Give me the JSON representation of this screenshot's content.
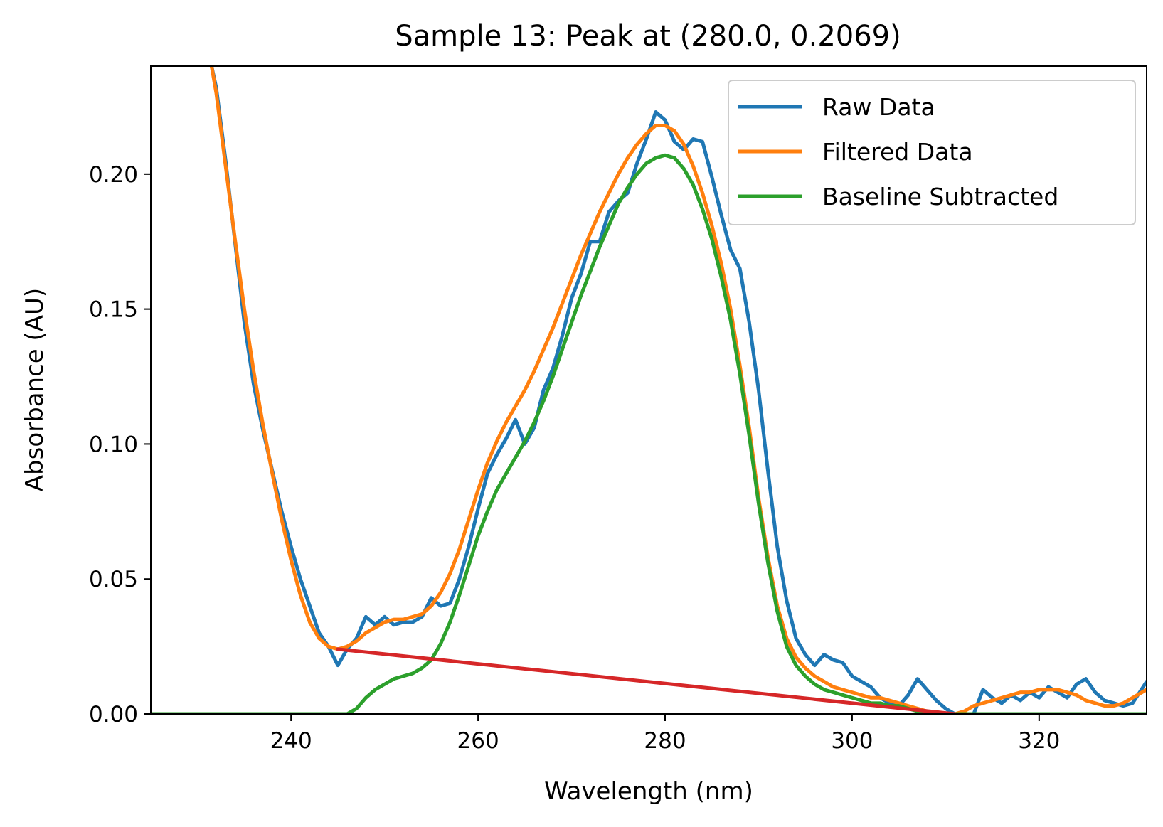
{
  "chart_data": {
    "type": "line",
    "title": "Sample 13: Peak at (280.0, 0.2069)",
    "xlabel": "Wavelength (nm)",
    "ylabel": "Absorbance (AU)",
    "xlim": [
      225.0,
      331.5
    ],
    "ylim": [
      0.0,
      0.24
    ],
    "xticks": [
      240,
      260,
      280,
      300,
      320
    ],
    "xtick_labels": [
      "240",
      "260",
      "280",
      "300",
      "320"
    ],
    "yticks": [
      0.0,
      0.05,
      0.1,
      0.15,
      0.2
    ],
    "ytick_labels": [
      "0.00",
      "0.05",
      "0.10",
      "0.15",
      "0.20"
    ],
    "grid": false,
    "legend_position": "top-right",
    "series": [
      {
        "name": "Raw Data",
        "color": "#1f77b4",
        "x": [
          231.5,
          232,
          233,
          234,
          235,
          236,
          237,
          238,
          239,
          240,
          241,
          242,
          243,
          244,
          245,
          246,
          247,
          248,
          249,
          250,
          251,
          252,
          253,
          254,
          255,
          256,
          257,
          258,
          259,
          260,
          261,
          262,
          263,
          264,
          265,
          266,
          267,
          268,
          269,
          270,
          271,
          272,
          273,
          274,
          275,
          276,
          277,
          278,
          279,
          280,
          281,
          282,
          283,
          284,
          285,
          286,
          287,
          288,
          289,
          290,
          291,
          292,
          293,
          294,
          295,
          296,
          297,
          298,
          299,
          300,
          301,
          302,
          303,
          304,
          305,
          306,
          307,
          308,
          309,
          310,
          311,
          312,
          313,
          314,
          315,
          316,
          317,
          318,
          319,
          320,
          321,
          322,
          323,
          324,
          325,
          326,
          327,
          328,
          329,
          330,
          331.5
        ],
        "y": [
          0.24,
          0.232,
          0.205,
          0.175,
          0.145,
          0.122,
          0.105,
          0.09,
          0.075,
          0.062,
          0.05,
          0.04,
          0.03,
          0.025,
          0.018,
          0.024,
          0.028,
          0.036,
          0.033,
          0.036,
          0.033,
          0.034,
          0.034,
          0.036,
          0.043,
          0.04,
          0.041,
          0.05,
          0.062,
          0.076,
          0.089,
          0.096,
          0.102,
          0.109,
          0.1,
          0.106,
          0.12,
          0.128,
          0.14,
          0.154,
          0.163,
          0.175,
          0.175,
          0.186,
          0.19,
          0.193,
          0.204,
          0.213,
          0.223,
          0.22,
          0.212,
          0.209,
          0.213,
          0.212,
          0.199,
          0.185,
          0.172,
          0.165,
          0.145,
          0.12,
          0.09,
          0.062,
          0.042,
          0.028,
          0.022,
          0.018,
          0.022,
          0.02,
          0.019,
          0.014,
          0.012,
          0.01,
          0.006,
          0.004,
          0.003,
          0.007,
          0.013,
          0.009,
          0.005,
          0.002,
          0.0,
          0.0,
          0.0,
          0.009,
          0.006,
          0.004,
          0.007,
          0.005,
          0.008,
          0.006,
          0.01,
          0.008,
          0.006,
          0.011,
          0.013,
          0.008,
          0.005,
          0.004,
          0.003,
          0.004,
          0.012
        ]
      },
      {
        "name": "Filtered Data",
        "color": "#ff7f0e",
        "x": [
          231.5,
          232,
          233,
          234,
          235,
          236,
          237,
          238,
          239,
          240,
          241,
          242,
          243,
          244,
          245,
          246,
          247,
          248,
          249,
          250,
          251,
          252,
          253,
          254,
          255,
          256,
          257,
          258,
          259,
          260,
          261,
          262,
          263,
          264,
          265,
          266,
          267,
          268,
          269,
          270,
          271,
          272,
          273,
          274,
          275,
          276,
          277,
          278,
          279,
          280,
          281,
          282,
          283,
          284,
          285,
          286,
          287,
          288,
          289,
          290,
          291,
          292,
          293,
          294,
          295,
          296,
          297,
          298,
          299,
          300,
          301,
          302,
          303,
          304,
          305,
          306,
          307,
          308,
          309,
          310,
          311,
          312,
          313,
          314,
          315,
          316,
          317,
          318,
          319,
          320,
          321,
          322,
          323,
          324,
          325,
          326,
          327,
          328,
          329,
          330,
          331.5
        ],
        "y": [
          0.24,
          0.23,
          0.203,
          0.176,
          0.15,
          0.127,
          0.107,
          0.089,
          0.072,
          0.057,
          0.044,
          0.034,
          0.028,
          0.025,
          0.024,
          0.025,
          0.027,
          0.03,
          0.032,
          0.034,
          0.035,
          0.035,
          0.036,
          0.037,
          0.04,
          0.045,
          0.052,
          0.061,
          0.072,
          0.083,
          0.093,
          0.101,
          0.108,
          0.114,
          0.12,
          0.127,
          0.135,
          0.143,
          0.152,
          0.161,
          0.17,
          0.178,
          0.186,
          0.193,
          0.2,
          0.206,
          0.211,
          0.215,
          0.218,
          0.218,
          0.216,
          0.211,
          0.203,
          0.193,
          0.181,
          0.167,
          0.15,
          0.129,
          0.106,
          0.08,
          0.058,
          0.04,
          0.028,
          0.021,
          0.017,
          0.014,
          0.012,
          0.01,
          0.009,
          0.008,
          0.007,
          0.006,
          0.006,
          0.005,
          0.004,
          0.003,
          0.002,
          0.001,
          0.0,
          0.0,
          0.0,
          0.001,
          0.003,
          0.004,
          0.005,
          0.006,
          0.007,
          0.008,
          0.008,
          0.009,
          0.009,
          0.009,
          0.008,
          0.007,
          0.005,
          0.004,
          0.003,
          0.003,
          0.004,
          0.006,
          0.009
        ]
      },
      {
        "name": "Baseline Subtracted",
        "color": "#2ca02c",
        "x": [
          225,
          226,
          230,
          235,
          240,
          244,
          245,
          246,
          247,
          248,
          249,
          250,
          251,
          252,
          253,
          254,
          255,
          256,
          257,
          258,
          259,
          260,
          261,
          262,
          263,
          264,
          265,
          266,
          267,
          268,
          269,
          270,
          271,
          272,
          273,
          274,
          275,
          276,
          277,
          278,
          279,
          280,
          281,
          282,
          283,
          284,
          285,
          286,
          287,
          288,
          289,
          290,
          291,
          292,
          293,
          294,
          295,
          296,
          297,
          298,
          299,
          300,
          301,
          302,
          303,
          304,
          305,
          306,
          307,
          308,
          309,
          310,
          311,
          312,
          320,
          331.5
        ],
        "y": [
          0,
          0,
          0,
          0,
          0,
          0,
          0,
          0,
          0.002,
          0.006,
          0.009,
          0.011,
          0.013,
          0.014,
          0.015,
          0.017,
          0.02,
          0.026,
          0.034,
          0.044,
          0.055,
          0.066,
          0.075,
          0.083,
          0.089,
          0.095,
          0.101,
          0.108,
          0.116,
          0.125,
          0.135,
          0.145,
          0.155,
          0.164,
          0.173,
          0.181,
          0.189,
          0.195,
          0.2,
          0.204,
          0.206,
          0.207,
          0.206,
          0.202,
          0.196,
          0.187,
          0.176,
          0.162,
          0.146,
          0.126,
          0.103,
          0.078,
          0.056,
          0.038,
          0.025,
          0.018,
          0.014,
          0.011,
          0.009,
          0.008,
          0.007,
          0.006,
          0.005,
          0.004,
          0.004,
          0.003,
          0.003,
          0.002,
          0.001,
          0.001,
          0.0,
          0.0,
          0.0,
          0.0,
          0.0,
          0.0
        ]
      },
      {
        "name": "",
        "color": "#d62728",
        "x": [
          245,
          311
        ],
        "y": [
          0.024,
          0.0
        ]
      }
    ]
  }
}
